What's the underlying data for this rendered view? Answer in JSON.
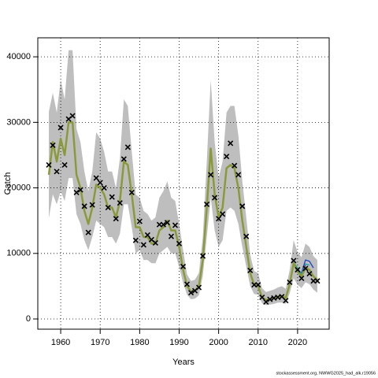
{
  "chart_data": {
    "type": "line",
    "xlabel": "Years",
    "ylabel": "Catch",
    "footer": "stockassessment.org, NWWG2025_had_alk.r19056",
    "xlim": [
      1954.2,
      2028
    ],
    "ylim": [
      -1560,
      42900
    ],
    "xticks": [
      1960,
      1970,
      1980,
      1990,
      2000,
      2010,
      2020
    ],
    "yticks": [
      0,
      10000,
      20000,
      30000,
      40000
    ],
    "grid": true,
    "x": [
      1957,
      1958,
      1959,
      1960,
      1961,
      1962,
      1963,
      1964,
      1965,
      1966,
      1967,
      1968,
      1969,
      1970,
      1971,
      1972,
      1973,
      1974,
      1975,
      1976,
      1977,
      1978,
      1979,
      1980,
      1981,
      1982,
      1983,
      1984,
      1985,
      1986,
      1987,
      1988,
      1989,
      1990,
      1991,
      1992,
      1993,
      1994,
      1995,
      1996,
      1997,
      1998,
      1999,
      2000,
      2001,
      2002,
      2003,
      2004,
      2005,
      2006,
      2007,
      2008,
      2009,
      2010,
      2011,
      2012,
      2013,
      2014,
      2015,
      2016,
      2017,
      2018,
      2019,
      2020,
      2021,
      2022,
      2023,
      2024,
      2025
    ],
    "band_color": "#bebebe",
    "upper": [
      31600,
      34500,
      31500,
      36500,
      33500,
      41000,
      41000,
      29000,
      27000,
      22500,
      19500,
      22500,
      28500,
      27500,
      25500,
      22500,
      22500,
      20000,
      24500,
      33500,
      32500,
      25500,
      19000,
      18500,
      16500,
      16000,
      15000,
      15500,
      18500,
      19500,
      21000,
      18500,
      18000,
      14500,
      10500,
      6800,
      5800,
      6000,
      7000,
      12500,
      24000,
      36500,
      27000,
      21500,
      24000,
      31500,
      32500,
      32500,
      28000,
      21000,
      15500,
      9800,
      7300,
      7000,
      4700,
      4100,
      4300,
      4500,
      4800,
      5000,
      4600,
      7500,
      12000,
      10200,
      9400,
      11500,
      11000,
      9600,
      9000
    ],
    "lower": [
      15400,
      19000,
      17500,
      19500,
      18000,
      21500,
      21500,
      16000,
      14500,
      12000,
      10500,
      12500,
      15000,
      14500,
      14000,
      12500,
      12500,
      11500,
      13000,
      17500,
      17500,
      14000,
      10000,
      10500,
      9000,
      9000,
      8500,
      8500,
      10000,
      10500,
      11000,
      10000,
      10000,
      8000,
      5500,
      3700,
      3000,
      3100,
      3600,
      6600,
      12500,
      18500,
      13500,
      11000,
      12000,
      16500,
      17000,
      16500,
      14500,
      11000,
      8000,
      5000,
      3800,
      3700,
      2400,
      2100,
      2200,
      2300,
      2500,
      2500,
      2300,
      3900,
      6200,
      5200,
      4700,
      5600,
      5300,
      4500,
      4000
    ],
    "fit": {
      "color": "#8a9a3a",
      "values": [
        22000,
        27000,
        24000,
        27500,
        25000,
        30000,
        30000,
        22000,
        20000,
        16500,
        14500,
        17000,
        20500,
        20000,
        19000,
        17000,
        17000,
        15500,
        18000,
        24000,
        23500,
        19000,
        14000,
        14000,
        12500,
        12500,
        11500,
        11500,
        13500,
        14000,
        15000,
        13500,
        13500,
        11000,
        7500,
        5000,
        4200,
        4300,
        5000,
        9000,
        17000,
        26000,
        19000,
        15500,
        17000,
        23000,
        23500,
        23000,
        20000,
        15000,
        11000,
        7000,
        5200,
        5000,
        3300,
        2900,
        3000,
        3200,
        3400,
        3500,
        3200,
        5300,
        8500,
        7200,
        6500,
        7800,
        7500,
        6500,
        6000
      ]
    },
    "observed": {
      "color": "#000000",
      "values": [
        23500,
        26500,
        22500,
        29200,
        23500,
        30500,
        31000,
        19300,
        19700,
        17200,
        13200,
        17400,
        21500,
        20800,
        20000,
        17000,
        18600,
        15300,
        17700,
        24400,
        26200,
        19300,
        12000,
        14900,
        11300,
        12800,
        12100,
        11600,
        14400,
        14400,
        14700,
        12600,
        14300,
        11500,
        8000,
        5300,
        4000,
        4300,
        4800,
        9600,
        17500,
        22000,
        18500,
        15300,
        16000,
        24800,
        26800,
        23400,
        22000,
        17200,
        12600,
        7400,
        5200,
        5200,
        3300,
        2600,
        3000,
        3200,
        3300,
        3400,
        2800,
        5600,
        8900,
        7500,
        6200,
        7700,
        6900,
        5800,
        5800
      ]
    },
    "retro": [
      {
        "color": "#2040c0",
        "x": [
          2018,
          2019,
          2020,
          2021,
          2022,
          2023,
          2024
        ],
        "values": [
          5300,
          8500,
          7500,
          7000,
          9000,
          8800,
          7800
        ]
      },
      {
        "color": "#20a0a0",
        "x": [
          2018,
          2019,
          2020,
          2021,
          2022,
          2023
        ],
        "values": [
          5300,
          8600,
          7800,
          6800,
          8400,
          8200
        ]
      },
      {
        "color": "#6030a0",
        "x": [
          2018,
          2019,
          2020,
          2021,
          2022
        ],
        "values": [
          5300,
          8400,
          7300,
          6600,
          8200
        ]
      }
    ]
  }
}
